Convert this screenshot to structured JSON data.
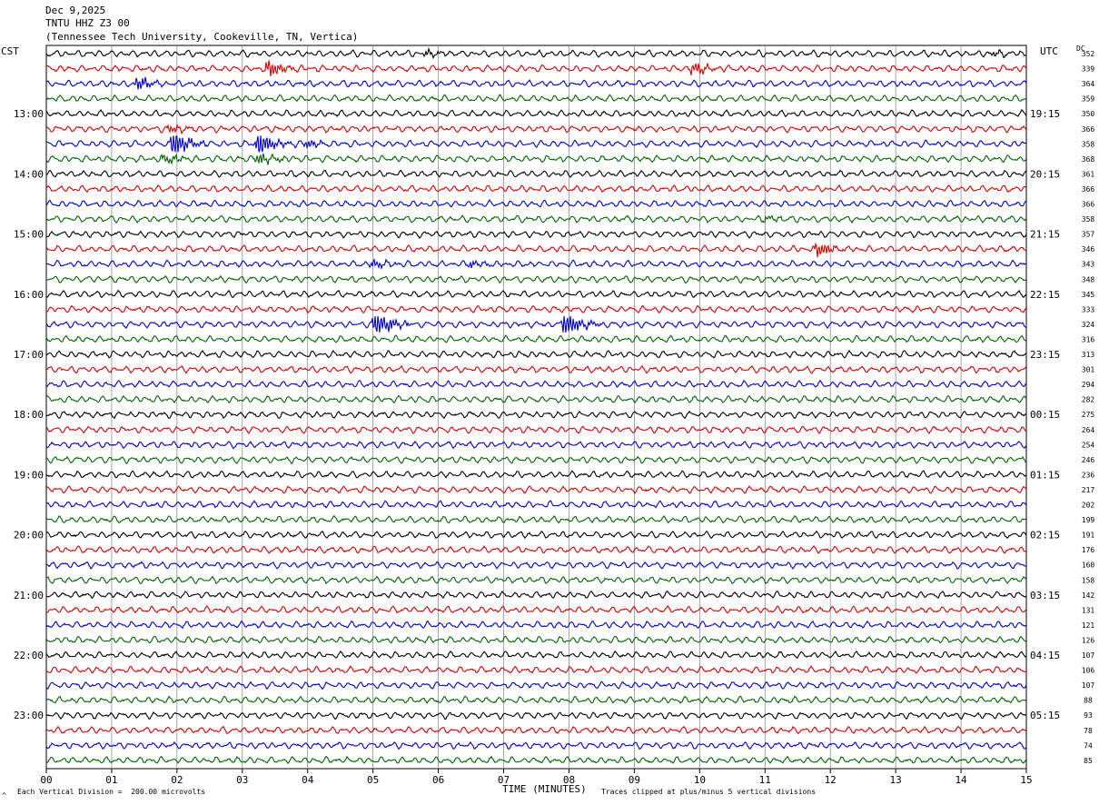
{
  "header": {
    "date": "Dec 9,2025",
    "station": "TNTU HHZ Z3 00",
    "location": "(Tennessee Tech University, Cookeville, TN, Vertica)"
  },
  "labels": {
    "left_zone": "CST",
    "right_zone": "UTC",
    "dc_header": "DC",
    "xlabel": "TIME (MINUTES)",
    "scale_note": "Each Vertical Division =  200.00 microvolts",
    "clip_note": "Traces clipped at plus/minus 5 vertical divisions",
    "corner_mark": "^"
  },
  "colors": {
    "trace_cycle": [
      "#000000",
      "#d40000",
      "#0000cc",
      "#006400"
    ],
    "grid": "#808080"
  },
  "chart_data": {
    "type": "line",
    "title": "",
    "xlabel": "TIME (MINUTES)",
    "x_ticks": [
      "00",
      "01",
      "02",
      "03",
      "04",
      "05",
      "06",
      "07",
      "08",
      "09",
      "10",
      "11",
      "12",
      "13",
      "14",
      "15"
    ],
    "xlim": [
      0,
      15
    ],
    "cst_hour_labels": [
      "13:00",
      "14:00",
      "15:00",
      "16:00",
      "17:00",
      "18:00",
      "19:00",
      "20:00",
      "21:00",
      "22:00",
      "23:00"
    ],
    "utc_hour_labels": [
      "19:15",
      "20:15",
      "21:15",
      "22:15",
      "23:15",
      "00:15",
      "01:15",
      "02:15",
      "03:15",
      "04:15",
      "05:15"
    ],
    "dc_offsets": [
      352,
      339,
      364,
      359,
      350,
      366,
      358,
      368,
      361,
      366,
      366,
      358,
      357,
      346,
      343,
      348,
      345,
      333,
      324,
      316,
      313,
      301,
      294,
      282,
      275,
      264,
      254,
      246,
      236,
      217,
      202,
      199,
      191,
      176,
      160,
      158,
      142,
      131,
      121,
      126,
      107,
      106,
      107,
      88,
      93,
      78,
      74,
      85
    ],
    "events": [
      {
        "trace": 0,
        "minute": 5.8,
        "amplitude": 0.5
      },
      {
        "trace": 0,
        "minute": 14.5,
        "amplitude": 0.5
      },
      {
        "trace": 1,
        "minute": 3.4,
        "amplitude": 1.3
      },
      {
        "trace": 1,
        "minute": 9.9,
        "amplitude": 1.0
      },
      {
        "trace": 2,
        "minute": 1.4,
        "amplitude": 1.0
      },
      {
        "trace": 5,
        "minute": 1.9,
        "amplitude": 0.6
      },
      {
        "trace": 6,
        "minute": 1.95,
        "amplitude": 2.0
      },
      {
        "trace": 6,
        "minute": 3.25,
        "amplitude": 2.2
      },
      {
        "trace": 6,
        "minute": 4.0,
        "amplitude": 0.6
      },
      {
        "trace": 7,
        "minute": 1.8,
        "amplitude": 0.8
      },
      {
        "trace": 7,
        "minute": 3.25,
        "amplitude": 0.9
      },
      {
        "trace": 11,
        "minute": 11.0,
        "amplitude": 0.5
      },
      {
        "trace": 13,
        "minute": 11.8,
        "amplitude": 1.4
      },
      {
        "trace": 14,
        "minute": 5.0,
        "amplitude": 0.6
      },
      {
        "trace": 14,
        "minute": 6.5,
        "amplitude": 0.5
      },
      {
        "trace": 18,
        "minute": 5.05,
        "amplitude": 2.4
      },
      {
        "trace": 18,
        "minute": 7.95,
        "amplitude": 2.5
      }
    ]
  }
}
